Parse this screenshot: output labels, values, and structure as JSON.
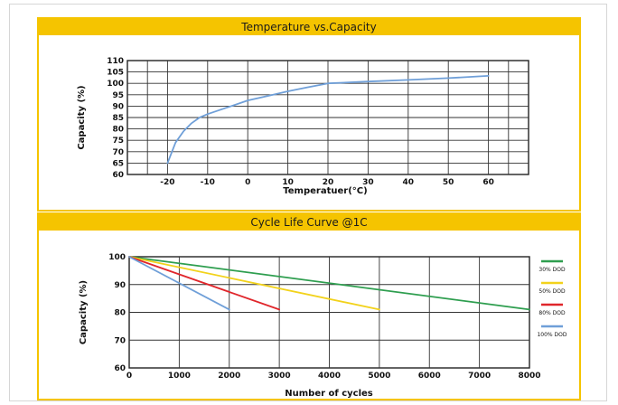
{
  "chart_data": [
    {
      "type": "line",
      "title": "Temperature vs.Capacity",
      "xlabel": "Temperatuer(°C)",
      "ylabel": "Capacity (%)",
      "xticks": [
        "-20",
        "-10",
        "0",
        "10",
        "20",
        "30",
        "40",
        "50",
        "60"
      ],
      "yticks": [
        "60",
        "65",
        "70",
        "75",
        "80",
        "85",
        "90",
        "95",
        "100",
        "105",
        "110"
      ],
      "xlim": [
        -30,
        70
      ],
      "ylim": [
        60,
        110
      ],
      "grid": true,
      "series": [
        {
          "color": "#6f9fd8",
          "x": [
            -20,
            -18,
            -16,
            -14,
            -12,
            -10,
            -5,
            0,
            5,
            10,
            15,
            20,
            30,
            40,
            50,
            60
          ],
          "y": [
            65,
            74,
            79,
            82.5,
            85,
            86.5,
            89.5,
            92.5,
            94.5,
            96.5,
            98.3,
            100,
            100.8,
            101.5,
            102.3,
            103.3
          ]
        }
      ]
    },
    {
      "type": "line",
      "title": "Cycle Life Curve @1C",
      "xlabel": "Number of cycles",
      "ylabel": "Capacity (%)",
      "xticks": [
        "0",
        "1000",
        "2000",
        "3000",
        "4000",
        "5000",
        "6000",
        "7000",
        "8000"
      ],
      "yticks": [
        "60",
        "70",
        "80",
        "90",
        "100"
      ],
      "xlim": [
        0,
        8000
      ],
      "ylim": [
        60,
        100
      ],
      "grid": true,
      "legend_position": "right",
      "series": [
        {
          "name": "30% DOD",
          "color": "#2e9e4f",
          "x": [
            0,
            8000
          ],
          "y": [
            100,
            81
          ]
        },
        {
          "name": "50% DOD",
          "color": "#f2d21b",
          "x": [
            0,
            5000
          ],
          "y": [
            100,
            81
          ]
        },
        {
          "name": "80% DOD",
          "color": "#e0262b",
          "x": [
            0,
            3000
          ],
          "y": [
            100,
            81
          ]
        },
        {
          "name": "100% DOD",
          "color": "#6f9fd8",
          "x": [
            0,
            2000
          ],
          "y": [
            100,
            81
          ]
        }
      ]
    }
  ]
}
